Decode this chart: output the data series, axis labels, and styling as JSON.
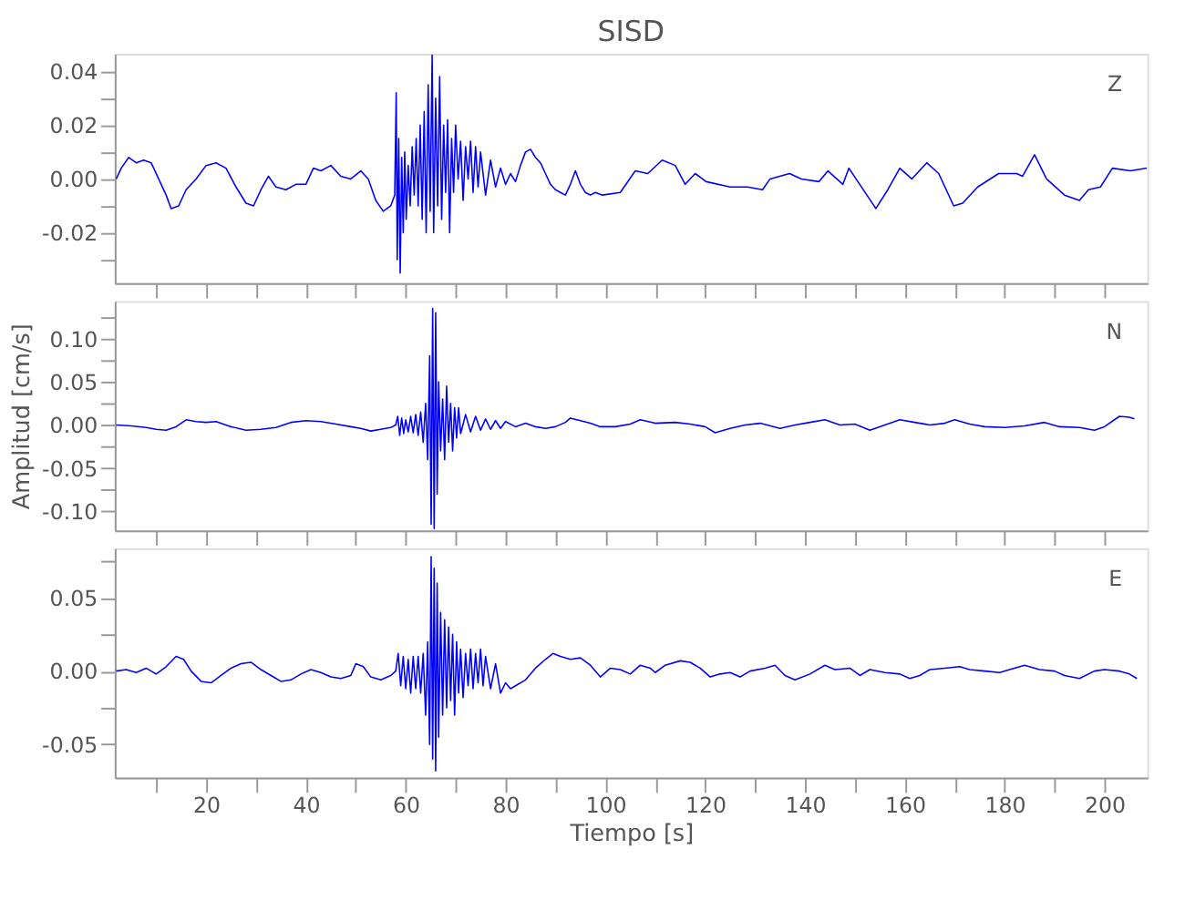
{
  "chart_data": [
    {
      "type": "line",
      "title": "SISD",
      "tick_labels": "y",
      "grid": false,
      "xlim": [
        1.7,
        208.6
      ],
      "xticks": [
        {
          "value": 10,
          "label": null
        },
        {
          "value": 20,
          "label": null
        },
        {
          "value": 30,
          "label": null
        },
        {
          "value": 40,
          "label": null
        },
        {
          "value": 50,
          "label": null
        },
        {
          "value": 60,
          "label": null
        },
        {
          "value": 70,
          "label": null
        },
        {
          "value": 80,
          "label": null
        },
        {
          "value": 90,
          "label": null
        },
        {
          "value": 100,
          "label": null
        },
        {
          "value": 110,
          "label": null
        },
        {
          "value": 120,
          "label": null
        },
        {
          "value": 130,
          "label": null
        },
        {
          "value": 140,
          "label": null
        },
        {
          "value": 150,
          "label": null
        },
        {
          "value": 160,
          "label": null
        },
        {
          "value": 170,
          "label": null
        },
        {
          "value": 180,
          "label": null
        },
        {
          "value": 190,
          "label": null
        },
        {
          "value": 200,
          "label": null
        }
      ],
      "ylim": [
        -0.0387,
        0.0465
      ],
      "yticks": [
        {
          "value": -0.03,
          "label": null
        },
        {
          "value": -0.02,
          "label": "-0.02"
        },
        {
          "value": -0.01,
          "label": null
        },
        {
          "value": 0,
          "label": "0.00"
        },
        {
          "value": 0.01,
          "label": null
        },
        {
          "value": 0.02,
          "label": "0.02"
        },
        {
          "value": 0.03,
          "label": null
        },
        {
          "value": 0.04,
          "label": "0.04"
        }
      ],
      "series": [
        {
          "name": "Z",
          "color": "#0000ff",
          "x": [
            2,
            3,
            4.5,
            6,
            7.5,
            9,
            10.5,
            12,
            13,
            14.5,
            16,
            18,
            20,
            22,
            24,
            26,
            28,
            29.5,
            31,
            32.5,
            34,
            36,
            38,
            40,
            41.5,
            43,
            45,
            47,
            49,
            51,
            52.5,
            54,
            55.5,
            57,
            57.8,
            58.1,
            58.3,
            58.6,
            58.9,
            59.2,
            59.5,
            59.8,
            60.1,
            60.5,
            60.9,
            61.3,
            61.7,
            62.1,
            62.5,
            62.9,
            63.3,
            63.7,
            64.1,
            64.5,
            64.9,
            65.3,
            65.6,
            66,
            66.4,
            66.8,
            67.2,
            67.6,
            68,
            68.4,
            68.8,
            69.2,
            69.6,
            70,
            70.5,
            71,
            71.5,
            72,
            72.5,
            73,
            73.5,
            74,
            74.5,
            75,
            76,
            77,
            78,
            79,
            80,
            81,
            82,
            83,
            84,
            85,
            86,
            87,
            88,
            89,
            90,
            91,
            92,
            93,
            94,
            95,
            96,
            97,
            98,
            99.4,
            103,
            106,
            108.5,
            111.4,
            114,
            116,
            118,
            120.2,
            125,
            128.5,
            131.5,
            133,
            136.9,
            139.3,
            142.8,
            144.6,
            147.6,
            148.8,
            152.4,
            154.2,
            156.6,
            159,
            161.4,
            164.4,
            166.8,
            169.8,
            171.6,
            174.6,
            178.8,
            182.4,
            183.6,
            186,
            188.4,
            192,
            195,
            196.8,
            199.2,
            201.6,
            205.2,
            208.5
          ],
          "values": [
            0,
            0.004,
            0.008,
            0.006,
            0.007,
            0.006,
            0,
            -0.006,
            -0.011,
            -0.01,
            -0.004,
            0,
            0.005,
            0.006,
            0.004,
            -0.003,
            -0.009,
            -0.01,
            -0.004,
            0.001,
            -0.003,
            -0.004,
            -0.002,
            -0.002,
            0.004,
            0.003,
            0.005,
            0.001,
            0,
            0.003,
            0,
            -0.008,
            -0.012,
            -0.01,
            -0.006,
            0.032,
            -0.03,
            0.015,
            -0.035,
            0.008,
            -0.02,
            0.01,
            -0.015,
            0.005,
            -0.01,
            0.012,
            -0.006,
            0.015,
            -0.01,
            0.02,
            -0.015,
            0.025,
            -0.02,
            0.035,
            -0.012,
            0.046,
            -0.02,
            0.03,
            -0.01,
            0.038,
            -0.015,
            0.02,
            -0.005,
            0.022,
            -0.02,
            0.015,
            -0.005,
            0.02,
            0,
            0.014,
            -0.008,
            0.012,
            0,
            0.014,
            -0.005,
            0.012,
            -0.003,
            0.01,
            -0.006,
            0.007,
            -0.003,
            0.004,
            -0.002,
            0.002,
            -0.001,
            0.005,
            0.01,
            0.011,
            0.008,
            0.006,
            0.002,
            -0.002,
            -0.004,
            -0.005,
            -0.006,
            -0.002,
            0.003,
            -0.002,
            -0.005,
            -0.006,
            -0.005,
            -0.006,
            -0.005,
            0.003,
            0.002,
            0.007,
            0.005,
            -0.002,
            0.002,
            -0.001,
            -0.003,
            -0.003,
            -0.004,
            0,
            0.002,
            0,
            -0.001,
            0.003,
            -0.002,
            0.004,
            -0.006,
            -0.011,
            -0.004,
            0.004,
            0,
            0.006,
            0.002,
            -0.01,
            -0.009,
            -0.003,
            0.002,
            0.002,
            0.001,
            0.009,
            0,
            -0.006,
            -0.008,
            -0.004,
            -0.003,
            0.004,
            0.003,
            0.004
          ]
        }
      ]
    },
    {
      "type": "line",
      "ylabel": "Amplitud [cm/s]",
      "tick_labels": "y",
      "grid": false,
      "xlim": [
        1.7,
        208.6
      ],
      "xticks": [
        {
          "value": 10,
          "label": null
        },
        {
          "value": 20,
          "label": null
        },
        {
          "value": 30,
          "label": null
        },
        {
          "value": 40,
          "label": null
        },
        {
          "value": 50,
          "label": null
        },
        {
          "value": 60,
          "label": null
        },
        {
          "value": 70,
          "label": null
        },
        {
          "value": 80,
          "label": null
        },
        {
          "value": 90,
          "label": null
        },
        {
          "value": 100,
          "label": null
        },
        {
          "value": 110,
          "label": null
        },
        {
          "value": 120,
          "label": null
        },
        {
          "value": 130,
          "label": null
        },
        {
          "value": 140,
          "label": null
        },
        {
          "value": 150,
          "label": null
        },
        {
          "value": 160,
          "label": null
        },
        {
          "value": 170,
          "label": null
        },
        {
          "value": 180,
          "label": null
        },
        {
          "value": 190,
          "label": null
        },
        {
          "value": 200,
          "label": null
        }
      ],
      "ylim": [
        -0.122,
        0.1435
      ],
      "yticks": [
        {
          "value": -0.1,
          "label": "-0.10"
        },
        {
          "value": -0.075,
          "label": null
        },
        {
          "value": -0.05,
          "label": "-0.05"
        },
        {
          "value": -0.025,
          "label": null
        },
        {
          "value": 0,
          "label": "0.00"
        },
        {
          "value": 0.025,
          "label": null
        },
        {
          "value": 0.05,
          "label": "0.05"
        },
        {
          "value": 0.075,
          "label": null
        },
        {
          "value": 0.1,
          "label": "0.10"
        },
        {
          "value": 0.125,
          "label": null
        }
      ],
      "series": [
        {
          "name": "N",
          "color": "#0000ff",
          "x": [
            2,
            5,
            8,
            10,
            12,
            14,
            16,
            18,
            20,
            22,
            25,
            28,
            31,
            34,
            37,
            40,
            43,
            46,
            49,
            51,
            53,
            55,
            57,
            58,
            58.4,
            58.8,
            59.2,
            59.6,
            60,
            60.5,
            61,
            61.5,
            62,
            62.5,
            63,
            63.5,
            64,
            64.4,
            64.8,
            65.1,
            65.4,
            65.7,
            66,
            66.3,
            66.6,
            67,
            67.4,
            67.8,
            68.2,
            68.6,
            69,
            69.4,
            69.8,
            70.2,
            70.6,
            71,
            72,
            73,
            74,
            75,
            76,
            77,
            78,
            79,
            80,
            82,
            84,
            86,
            88,
            90,
            92,
            93,
            95,
            97,
            99,
            102,
            105,
            107,
            110,
            114,
            117,
            120,
            122,
            125,
            128,
            131,
            135,
            138,
            141,
            144,
            147,
            150,
            153,
            156,
            159,
            162,
            165,
            168,
            170,
            173,
            176,
            180,
            184,
            188,
            191,
            195,
            198,
            200,
            203,
            205,
            206
          ],
          "values": [
            0,
            -0.001,
            -0.003,
            -0.005,
            -0.006,
            -0.002,
            0.006,
            0.004,
            0.003,
            0.004,
            -0.002,
            -0.006,
            -0.005,
            -0.003,
            0.003,
            0.005,
            0.004,
            0.001,
            -0.002,
            -0.004,
            -0.007,
            -0.005,
            -0.003,
            0,
            0.01,
            -0.012,
            0.008,
            -0.01,
            0.006,
            -0.008,
            0.01,
            -0.009,
            0.012,
            -0.012,
            0.015,
            -0.02,
            0.025,
            -0.04,
            0.08,
            -0.115,
            0.135,
            -0.12,
            0.13,
            -0.08,
            0.05,
            -0.03,
            0.03,
            -0.04,
            0.045,
            -0.02,
            0.025,
            -0.03,
            0.02,
            -0.015,
            0.02,
            -0.01,
            0.012,
            -0.008,
            0.01,
            -0.006,
            0.007,
            -0.005,
            0.005,
            -0.004,
            0.004,
            -0.002,
            0.002,
            -0.002,
            -0.004,
            -0.002,
            0.003,
            0.008,
            0.005,
            0.002,
            -0.002,
            -0.002,
            0.001,
            0.006,
            0.002,
            0.003,
            0.001,
            -0.002,
            -0.009,
            -0.004,
            0,
            0.002,
            -0.004,
            0,
            0.003,
            0.006,
            0,
            0.001,
            -0.006,
            0,
            0.006,
            0.003,
            0,
            0.002,
            0.006,
            0.001,
            -0.002,
            -0.003,
            -0.001,
            0.003,
            -0.002,
            -0.003,
            -0.006,
            -0.002,
            0.01,
            0.009,
            0.007
          ]
        }
      ]
    },
    {
      "type": "line",
      "xlabel": "Tiempo [s]",
      "grid": false,
      "xlim": [
        1.7,
        208.6
      ],
      "xticks": [
        {
          "value": 10,
          "label": null
        },
        {
          "value": 20,
          "label": "20"
        },
        {
          "value": 30,
          "label": null
        },
        {
          "value": 40,
          "label": "40"
        },
        {
          "value": 50,
          "label": null
        },
        {
          "value": 60,
          "label": "60"
        },
        {
          "value": 70,
          "label": null
        },
        {
          "value": 80,
          "label": "80"
        },
        {
          "value": 90,
          "label": null
        },
        {
          "value": 100,
          "label": "100"
        },
        {
          "value": 110,
          "label": null
        },
        {
          "value": 120,
          "label": "120"
        },
        {
          "value": 130,
          "label": null
        },
        {
          "value": 140,
          "label": "140"
        },
        {
          "value": 150,
          "label": null
        },
        {
          "value": 160,
          "label": "160"
        },
        {
          "value": 170,
          "label": null
        },
        {
          "value": 180,
          "label": "180"
        },
        {
          "value": 190,
          "label": null
        },
        {
          "value": 200,
          "label": "200"
        }
      ],
      "ylim": [
        -0.0726,
        0.0837
      ],
      "yticks": [
        {
          "value": -0.05,
          "label": "-0.05"
        },
        {
          "value": -0.025,
          "label": null
        },
        {
          "value": 0,
          "label": "0.00"
        },
        {
          "value": 0.025,
          "label": null
        },
        {
          "value": 0.05,
          "label": "0.05"
        },
        {
          "value": 0.075,
          "label": null
        }
      ],
      "series": [
        {
          "name": "E",
          "color": "#0000ff",
          "x": [
            2,
            4,
            6,
            8,
            10,
            12,
            14,
            15.5,
            17,
            19,
            21,
            23,
            25,
            27,
            29,
            31,
            33,
            35,
            37,
            39,
            41,
            43,
            45,
            47,
            49,
            50,
            51.5,
            53,
            55,
            57,
            58,
            58.5,
            59,
            59.5,
            60,
            60.5,
            61,
            61.5,
            62,
            62.5,
            63,
            63.5,
            64,
            64.4,
            64.8,
            65.1,
            65.4,
            65.7,
            66,
            66.3,
            66.6,
            67,
            67.4,
            67.8,
            68.2,
            68.6,
            69,
            69.4,
            69.8,
            70.2,
            70.6,
            71,
            71.5,
            72,
            72.5,
            73,
            73.5,
            74,
            74.5,
            75,
            75.5,
            76,
            77,
            78,
            79,
            80,
            81,
            82,
            84,
            86,
            88,
            89.5,
            91,
            93,
            95,
            97,
            99,
            101,
            103,
            105,
            107,
            109,
            110,
            112,
            115,
            117,
            119,
            121,
            123,
            125,
            127,
            129,
            132,
            134,
            136,
            138,
            141,
            144,
            146,
            149,
            151,
            153,
            156,
            159,
            161,
            163,
            165,
            168,
            171,
            173,
            176,
            179,
            181,
            184,
            187,
            190,
            192,
            195,
            198,
            200,
            203,
            205,
            206.5
          ],
          "values": [
            0,
            0.001,
            -0.001,
            0.002,
            -0.002,
            0.003,
            0.01,
            0.008,
            0,
            -0.007,
            -0.008,
            -0.003,
            0.002,
            0.005,
            0.006,
            0.001,
            -0.003,
            -0.007,
            -0.006,
            -0.002,
            0.001,
            -0.001,
            -0.004,
            -0.005,
            -0.003,
            0.005,
            0.003,
            -0.004,
            -0.006,
            -0.003,
            0,
            0.012,
            -0.01,
            0.01,
            -0.012,
            0.008,
            -0.015,
            0.01,
            -0.012,
            0.01,
            -0.015,
            0.012,
            -0.03,
            0.02,
            -0.05,
            0.078,
            -0.06,
            0.07,
            -0.068,
            0.06,
            -0.045,
            0.04,
            -0.03,
            0.035,
            -0.025,
            0.03,
            -0.02,
            0.025,
            -0.03,
            0.02,
            -0.015,
            0.015,
            -0.018,
            0.012,
            -0.01,
            0.015,
            -0.012,
            0.012,
            -0.008,
            0.015,
            -0.01,
            0.01,
            -0.012,
            0.005,
            -0.015,
            -0.008,
            -0.012,
            -0.01,
            -0.006,
            0.002,
            0.008,
            0.012,
            0.01,
            0.008,
            0.009,
            0.004,
            -0.004,
            0.002,
            0.001,
            -0.002,
            0.004,
            0.002,
            -0.001,
            0.004,
            0.007,
            0.006,
            0.002,
            -0.004,
            -0.002,
            -0.001,
            -0.004,
            0,
            0.002,
            0.004,
            -0.003,
            -0.006,
            -0.002,
            0.004,
            0.001,
            0.002,
            -0.003,
            0.001,
            -0.001,
            -0.002,
            -0.005,
            -0.003,
            0.001,
            0.002,
            0.003,
            0.001,
            0,
            -0.001,
            0.001,
            0.004,
            0.001,
            0,
            -0.003,
            -0.005,
            0,
            0.001,
            0,
            -0.002,
            -0.005
          ]
        }
      ]
    }
  ]
}
